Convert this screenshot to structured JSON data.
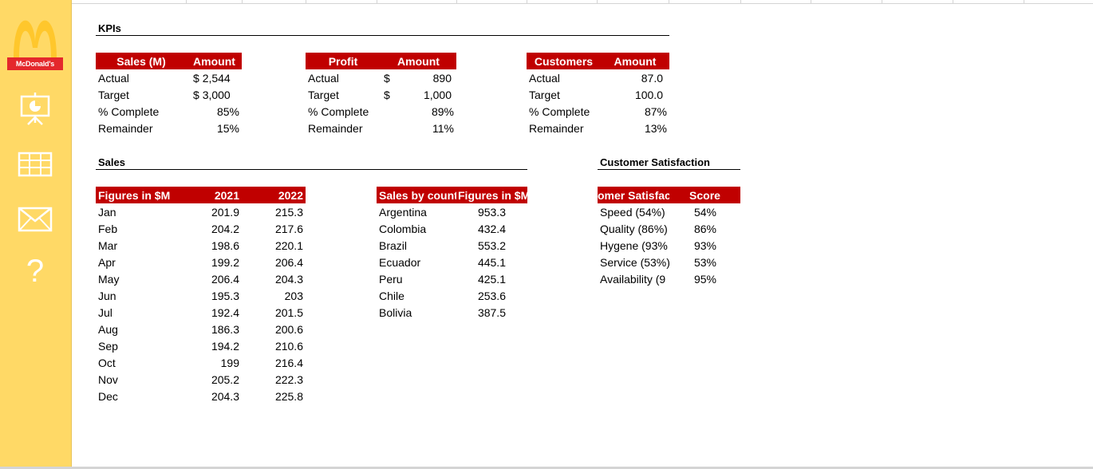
{
  "sidebar": {
    "logo_text": "McDonald's",
    "nav": [
      {
        "icon": "presentation-icon"
      },
      {
        "icon": "table-grid-icon"
      },
      {
        "icon": "mail-icon"
      },
      {
        "icon": "help-icon",
        "glyph": "?"
      }
    ],
    "colors": {
      "background": "#ffd966",
      "logo_arch": "#ffc72c",
      "logo_band": "#e4282c"
    }
  },
  "kpis": {
    "title": "KPIs",
    "sales": {
      "headers": [
        "Sales (M)",
        "Amount"
      ],
      "rows": [
        {
          "label": "Actual",
          "cur": "$",
          "value": "2,544"
        },
        {
          "label": "Target",
          "cur": "$",
          "value": "3,000"
        },
        {
          "label": "% Complete",
          "cur": "",
          "value": "85%"
        },
        {
          "label": "Remainder",
          "cur": "",
          "value": "15%"
        }
      ]
    },
    "profit": {
      "headers": [
        "Profit",
        "Amount"
      ],
      "rows": [
        {
          "label": "Actual",
          "cur": "$",
          "value": "890"
        },
        {
          "label": "Target",
          "cur": "$",
          "value": "1,000"
        },
        {
          "label": "% Complete",
          "cur": "",
          "value": "89%"
        },
        {
          "label": "Remainder",
          "cur": "",
          "value": "11%"
        }
      ]
    },
    "customers": {
      "headers": [
        "Customers",
        "Amount"
      ],
      "rows": [
        {
          "label": "Actual",
          "value": "87.0"
        },
        {
          "label": "Target",
          "value": "100.0"
        },
        {
          "label": "% Complete",
          "value": "87%"
        },
        {
          "label": "Remainder",
          "value": "13%"
        }
      ]
    }
  },
  "sales": {
    "title": "Sales",
    "monthly": {
      "headers": [
        "Figures in $M",
        "2021",
        "2022"
      ],
      "rows": [
        [
          "Jan",
          "201.9",
          "215.3"
        ],
        [
          "Feb",
          "204.2",
          "217.6"
        ],
        [
          "Mar",
          "198.6",
          "220.1"
        ],
        [
          "Apr",
          "199.2",
          "206.4"
        ],
        [
          "May",
          "206.4",
          "204.3"
        ],
        [
          "Jun",
          "195.3",
          "203"
        ],
        [
          "Jul",
          "192.4",
          "201.5"
        ],
        [
          "Aug",
          "186.3",
          "200.6"
        ],
        [
          "Sep",
          "194.2",
          "210.6"
        ],
        [
          "Oct",
          "199",
          "216.4"
        ],
        [
          "Nov",
          "205.2",
          "222.3"
        ],
        [
          "Dec",
          "204.3",
          "225.8"
        ]
      ]
    },
    "by_country": {
      "headers": [
        "Sales by count",
        "Figures in $M"
      ],
      "rows": [
        [
          "Argentina",
          "953.3"
        ],
        [
          "Colombia",
          "432.4"
        ],
        [
          "Brazil",
          "553.2"
        ],
        [
          "Ecuador",
          "445.1"
        ],
        [
          "Peru",
          "425.1"
        ],
        [
          "Chile",
          "253.6"
        ],
        [
          "Bolivia",
          "387.5"
        ]
      ]
    }
  },
  "satisfaction": {
    "title": "Customer Satisfaction",
    "headers": [
      "omer Satisfac",
      "Score"
    ],
    "rows": [
      [
        "Speed (54%)",
        "54%"
      ],
      [
        "Quality (86%)",
        "86%"
      ],
      [
        "Hygene (93%",
        "93%"
      ],
      [
        "Service (53%)",
        "53%"
      ],
      [
        "Availability (9",
        "95%"
      ]
    ]
  },
  "colors": {
    "header_fill": "#c00000",
    "header_text": "#ffffff"
  }
}
